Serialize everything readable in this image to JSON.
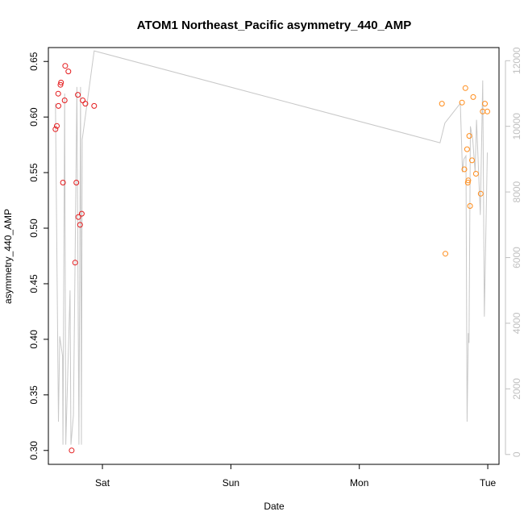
{
  "chart_data": {
    "type": "scatter",
    "title": "ATOM1 Northeast_Pacific asymmetry_440_AMP",
    "xlabel": "Date",
    "ylabel": "asymmetry_440_AMP",
    "x_ticks": [
      {
        "label": "Sat",
        "t": 0.0
      },
      {
        "label": "Sun",
        "t": 24.0
      },
      {
        "label": "Mon",
        "t": 48.0
      },
      {
        "label": "Tue",
        "t": 72.0
      }
    ],
    "xlim_hours_from_sat": [
      -10.1,
      74.1
    ],
    "ylim": [
      0.2875,
      0.6625
    ],
    "y_ticks": [
      "0.30",
      "0.35",
      "0.40",
      "0.45",
      "0.50",
      "0.55",
      "0.60",
      "0.65"
    ],
    "y2lim": [
      -300,
      12400
    ],
    "y2_ticks": [
      "0",
      "2000",
      "4000",
      "6000",
      "8000",
      "10000",
      "12000"
    ],
    "grid": false,
    "legend": "none",
    "colors": {
      "series1": "#e41a1c",
      "series2": "#ff8c1a",
      "line": "#c8c8c8",
      "right_axis": "#c0c0c0"
    },
    "series": [
      {
        "color": "#e41a1c",
        "points": [
          {
            "x": -8.78,
            "y": 0.589
          },
          {
            "x": -8.52,
            "y": 0.592
          },
          {
            "x": -8.26,
            "y": 0.621
          },
          {
            "x": -8.21,
            "y": 0.61
          },
          {
            "x": -7.84,
            "y": 0.629
          },
          {
            "x": -7.73,
            "y": 0.631
          },
          {
            "x": -7.38,
            "y": 0.541
          },
          {
            "x": -7.05,
            "y": 0.615
          },
          {
            "x": -6.95,
            "y": 0.646
          },
          {
            "x": -6.36,
            "y": 0.641
          },
          {
            "x": -5.74,
            "y": 0.3
          },
          {
            "x": -5.1,
            "y": 0.469
          },
          {
            "x": -4.87,
            "y": 0.541
          },
          {
            "x": -4.59,
            "y": 0.62
          },
          {
            "x": -4.5,
            "y": 0.51
          },
          {
            "x": -4.18,
            "y": 0.503
          },
          {
            "x": -3.87,
            "y": 0.513
          },
          {
            "x": -3.69,
            "y": 0.615
          },
          {
            "x": -3.18,
            "y": 0.612
          },
          {
            "x": -1.54,
            "y": 0.61
          }
        ]
      },
      {
        "color": "#ff8c1a",
        "points": [
          {
            "x": 63.44,
            "y": 0.612
          },
          {
            "x": 64.08,
            "y": 0.477
          },
          {
            "x": 67.18,
            "y": 0.613
          },
          {
            "x": 67.63,
            "y": 0.553
          },
          {
            "x": 67.82,
            "y": 0.626
          },
          {
            "x": 68.13,
            "y": 0.571
          },
          {
            "x": 68.27,
            "y": 0.541
          },
          {
            "x": 68.36,
            "y": 0.543
          },
          {
            "x": 68.54,
            "y": 0.583
          },
          {
            "x": 68.69,
            "y": 0.52
          },
          {
            "x": 69.05,
            "y": 0.561
          },
          {
            "x": 69.28,
            "y": 0.618
          },
          {
            "x": 69.79,
            "y": 0.549
          },
          {
            "x": 70.68,
            "y": 0.531
          },
          {
            "x": 71.06,
            "y": 0.605
          },
          {
            "x": 71.47,
            "y": 0.612
          },
          {
            "x": 71.91,
            "y": 0.605
          }
        ]
      }
    ],
    "line_series": {
      "axis": "right",
      "color": "#c8c8c8",
      "points": [
        {
          "x": -8.78,
          "y": 10700
        },
        {
          "x": -8.21,
          "y": 1000
        },
        {
          "x": -7.98,
          "y": 3600
        },
        {
          "x": -7.45,
          "y": 3000
        },
        {
          "x": -7.38,
          "y": 300
        },
        {
          "x": -7.05,
          "y": 11000
        },
        {
          "x": -6.85,
          "y": 300
        },
        {
          "x": -6.05,
          "y": 5000
        },
        {
          "x": -5.88,
          "y": 300
        },
        {
          "x": -5.41,
          "y": 1200
        },
        {
          "x": -4.77,
          "y": 11200
        },
        {
          "x": -4.39,
          "y": 300
        },
        {
          "x": -4.09,
          "y": 11200
        },
        {
          "x": -3.92,
          "y": 300
        },
        {
          "x": -3.77,
          "y": 9600
        },
        {
          "x": -1.54,
          "y": 12300
        },
        {
          "x": 63.08,
          "y": 9500
        },
        {
          "x": 64.0,
          "y": 10100
        },
        {
          "x": 66.87,
          "y": 10700
        },
        {
          "x": 67.28,
          "y": 8600
        },
        {
          "x": 67.53,
          "y": 9000
        },
        {
          "x": 67.93,
          "y": 9100
        },
        {
          "x": 68.13,
          "y": 1000
        },
        {
          "x": 68.36,
          "y": 3700
        },
        {
          "x": 68.5,
          "y": 3400
        },
        {
          "x": 68.76,
          "y": 10000
        },
        {
          "x": 69.19,
          "y": 9600
        },
        {
          "x": 69.64,
          "y": 8600
        },
        {
          "x": 69.89,
          "y": 10200
        },
        {
          "x": 70.61,
          "y": 7300
        },
        {
          "x": 71.06,
          "y": 11400
        },
        {
          "x": 71.36,
          "y": 4200
        },
        {
          "x": 71.91,
          "y": 9200
        }
      ]
    }
  }
}
